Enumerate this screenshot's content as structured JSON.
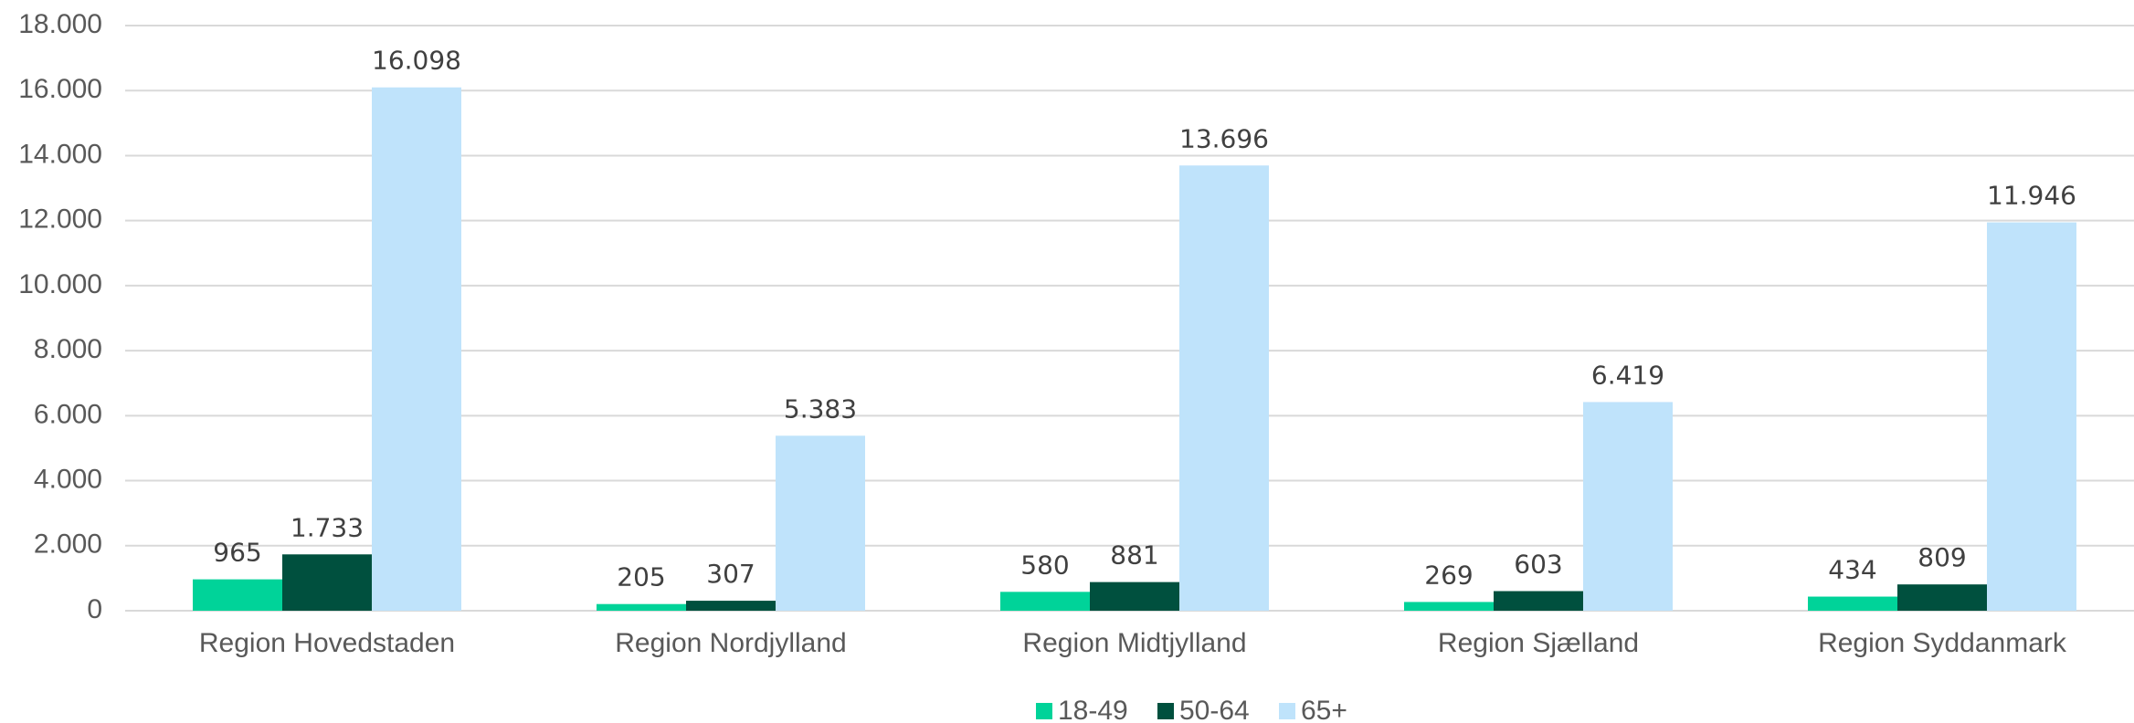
{
  "chart_data": {
    "type": "bar",
    "categories": [
      "Region Hovedstaden",
      "Region Nordjylland",
      "Region Midtjylland",
      "Region Sjælland",
      "Region Syddanmark"
    ],
    "series": [
      {
        "name": "18-49",
        "color": "#00d399",
        "values": [
          965,
          205,
          580,
          269,
          434
        ],
        "value_labels": [
          "965",
          "205",
          "580",
          "269",
          "434"
        ]
      },
      {
        "name": "50-64",
        "color": "#00503e",
        "values": [
          1733,
          307,
          881,
          603,
          809
        ],
        "value_labels": [
          "1.733",
          "307",
          "881",
          "603",
          "809"
        ]
      },
      {
        "name": "65+",
        "color": "#bfe3fb",
        "values": [
          16098,
          5383,
          13696,
          6419,
          11946
        ],
        "value_labels": [
          "16.098",
          "5.383",
          "13.696",
          "6.419",
          "11.946"
        ]
      }
    ],
    "ylim": [
      0,
      18000
    ],
    "yticks": [
      0,
      {
        "value": 2000,
        "label": "2.000"
      },
      {
        "value": 4000,
        "label": "4.000"
      },
      {
        "value": 6000,
        "label": "6.000"
      },
      {
        "value": 8000,
        "label": "8.000"
      },
      {
        "value": 10000,
        "label": "10.000"
      },
      {
        "value": 12000,
        "label": "12.000"
      },
      {
        "value": 14000,
        "label": "14.000"
      },
      {
        "value": 16000,
        "label": "16.000"
      },
      {
        "value": 18000,
        "label": "18.000"
      }
    ],
    "grid": true,
    "legend": "bottom"
  }
}
